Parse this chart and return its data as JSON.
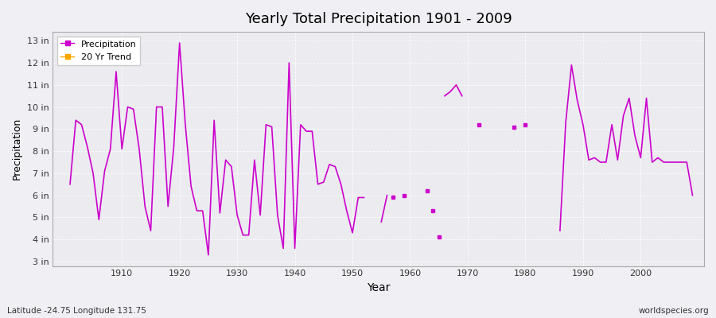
{
  "title": "Yearly Total Precipitation 1901 - 2009",
  "xlabel": "Year",
  "ylabel": "Precipitation",
  "bg_color": "#f0f0f4",
  "plot_bg_color": "#ebebf0",
  "line_color": "#cc00cc",
  "trend_color": "#ffa500",
  "yticks": [
    3,
    4,
    5,
    6,
    7,
    8,
    9,
    10,
    11,
    12,
    13
  ],
  "ylim": [
    2.8,
    13.4
  ],
  "xlim": [
    1898,
    2011
  ],
  "footnote_left": "Latitude -24.75 Longitude 131.75",
  "footnote_right": "worldspecies.org",
  "seg1_years": [
    1901,
    1902,
    1903,
    1904,
    1905,
    1906,
    1907,
    1908,
    1909,
    1910,
    1911,
    1912,
    1913,
    1914,
    1915,
    1916,
    1917,
    1918,
    1919,
    1920,
    1921,
    1922,
    1923,
    1924,
    1925,
    1926,
    1927,
    1928,
    1929,
    1930,
    1931,
    1932,
    1933,
    1934,
    1935,
    1936,
    1937,
    1938,
    1939,
    1940,
    1941,
    1942,
    1943,
    1944,
    1945,
    1946,
    1947,
    1948,
    1949,
    1950,
    1951,
    1952
  ],
  "seg1_vals": [
    6.5,
    9.4,
    9.2,
    8.2,
    7.0,
    4.9,
    7.1,
    8.1,
    11.6,
    8.1,
    10.0,
    9.9,
    8.1,
    5.5,
    4.4,
    10.0,
    10.0,
    5.5,
    8.2,
    12.9,
    9.2,
    6.4,
    5.3,
    5.3,
    3.3,
    9.4,
    5.2,
    7.6,
    7.3,
    5.1,
    4.2,
    4.2,
    7.6,
    5.1,
    9.2,
    9.1,
    5.1,
    3.6,
    12.0,
    3.6,
    9.2,
    8.9,
    8.9,
    6.5,
    6.6,
    7.4,
    7.3,
    6.5,
    5.3,
    4.3,
    5.9,
    5.9
  ],
  "seg2_years": [
    1955,
    1956
  ],
  "seg2_vals": [
    4.8,
    6.0
  ],
  "dots_years": [
    1957,
    1959,
    1963,
    1964,
    1965
  ],
  "dots_vals": [
    5.9,
    6.0,
    6.2,
    5.3,
    4.1
  ],
  "seg3_years": [
    1966,
    1967,
    1968,
    1969
  ],
  "seg3_vals": [
    10.5,
    10.7,
    11.0,
    10.5
  ],
  "dots2_years": [
    1972,
    1978,
    1980
  ],
  "dots2_vals": [
    9.2,
    9.1,
    9.2
  ],
  "seg4_years": [
    1986,
    1987,
    1988,
    1989,
    1990,
    1991,
    1992,
    1993,
    1994,
    1995,
    1996,
    1997,
    1998,
    1999,
    2000,
    2001,
    2002,
    2003,
    2004,
    2005,
    2006,
    2007,
    2008,
    2009
  ],
  "seg4_vals": [
    4.4,
    9.3,
    11.9,
    10.3,
    9.2,
    7.6,
    7.7,
    7.5,
    7.5,
    9.2,
    7.6,
    9.6,
    10.4,
    8.7,
    7.7,
    10.4,
    7.5,
    7.7,
    7.5,
    7.5,
    7.5,
    7.5,
    7.5,
    6.0
  ]
}
